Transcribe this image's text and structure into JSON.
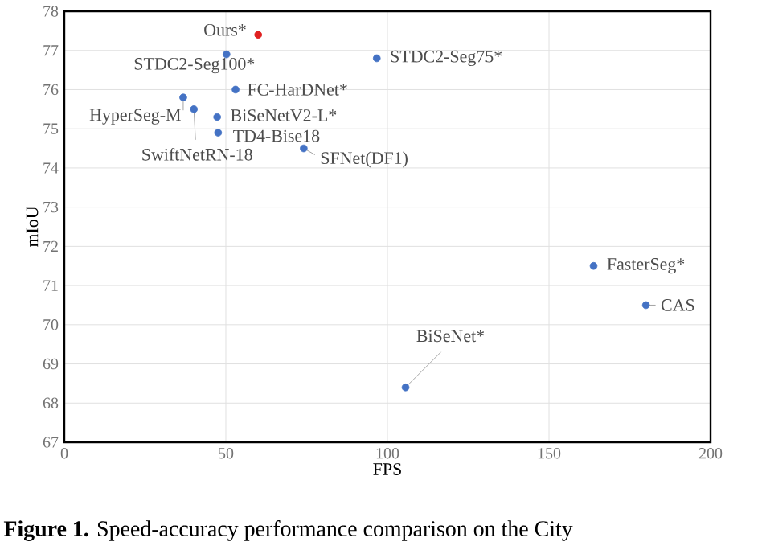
{
  "chart_data": {
    "type": "scatter",
    "xlabel": "FPS",
    "ylabel": "mIoU",
    "x": [
      60,
      50.2,
      53,
      36.8,
      40.1,
      47.3,
      47.6,
      74.1,
      96.7,
      163.8,
      180,
      105.6
    ],
    "values": [
      77.4,
      76.9,
      76.0,
      75.8,
      75.5,
      75.3,
      74.9,
      74.5,
      76.8,
      71.5,
      70.5,
      68.4
    ],
    "colors": [
      "#e02020",
      "#4472c4",
      "#4472c4",
      "#4472c4",
      "#4472c4",
      "#4472c4",
      "#4472c4",
      "#4472c4",
      "#4472c4",
      "#4472c4",
      "#4472c4",
      "#4472c4"
    ],
    "xlim": [
      0,
      200
    ],
    "xticks": [
      0,
      50,
      100,
      150,
      200
    ],
    "ylim": [
      67,
      78
    ],
    "yticks": [
      67,
      68,
      69,
      70,
      71,
      72,
      73,
      74,
      75,
      76,
      77,
      78
    ],
    "grid": true,
    "marker": "circle",
    "annotations": [
      {
        "text": "Ours*",
        "x": 60,
        "y": 77.4
      },
      {
        "text": "STDC2-Seg100*",
        "x": 50.2,
        "y": 76.9
      },
      {
        "text": "FC-HarDNet*",
        "x": 53,
        "y": 76.0
      },
      {
        "text": "HyperSeg-M",
        "x": 36.8,
        "y": 75.8
      },
      {
        "text": "SwiftNetRN-18",
        "x": 40.1,
        "y": 75.5
      },
      {
        "text": "BiSeNetV2-L*",
        "x": 47.3,
        "y": 75.3
      },
      {
        "text": "TD4-Bise18",
        "x": 47.6,
        "y": 74.9
      },
      {
        "text": "SFNet(DF1)",
        "x": 74.1,
        "y": 74.5
      },
      {
        "text": "STDC2-Seg75*",
        "x": 96.7,
        "y": 76.8
      },
      {
        "text": "FasterSeg*",
        "x": 163.8,
        "y": 71.5
      },
      {
        "text": "CAS",
        "x": 180,
        "y": 70.5
      },
      {
        "text": "BiSeNet*",
        "x": 105.6,
        "y": 68.4
      },
      "**Figure 1.** Speed-accuracy performance comparison on the City"
    ]
  }
}
